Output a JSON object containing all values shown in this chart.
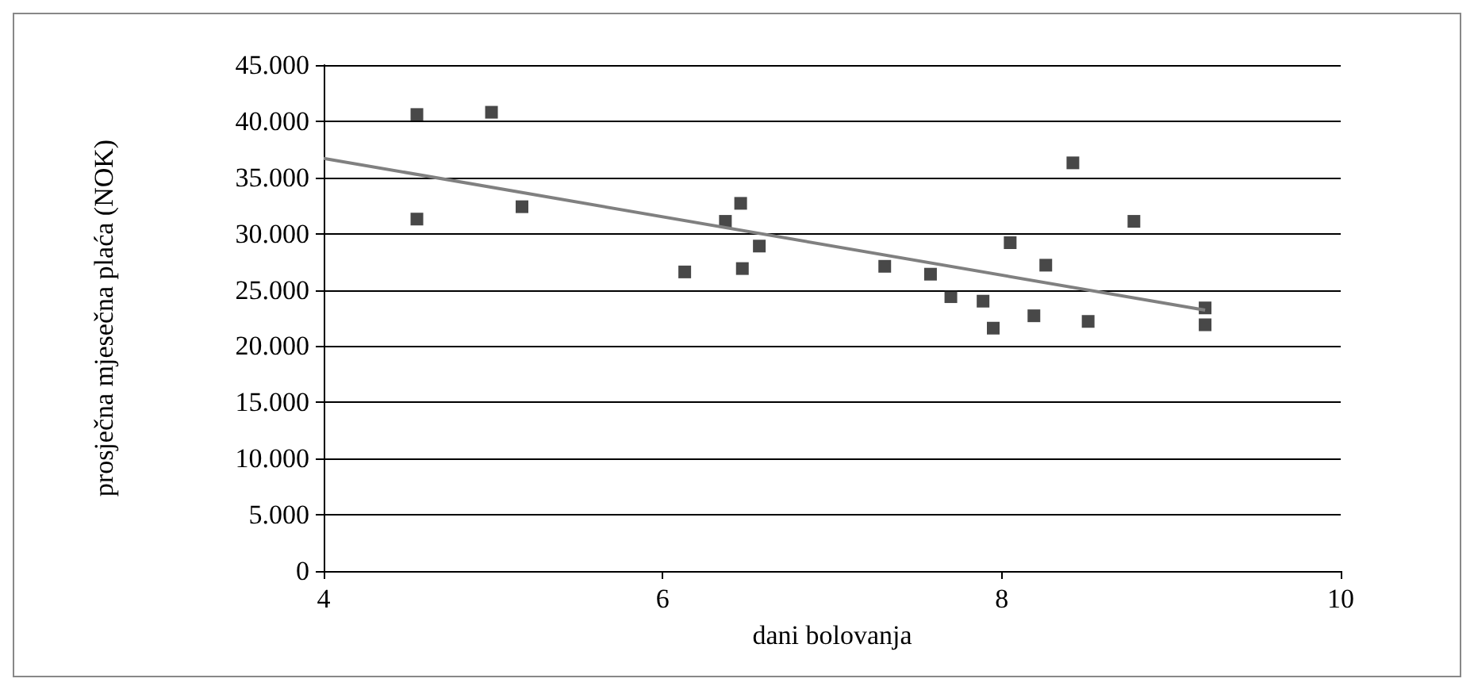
{
  "chart_data": {
    "type": "scatter",
    "xlabel": "dani bolovanja",
    "ylabel": "prosječna mjesečna plaća (NOK)",
    "xlim": [
      4,
      10
    ],
    "xticks": [
      4,
      6,
      8,
      10
    ],
    "ylim": [
      0,
      45000
    ],
    "yticks": [
      {
        "value": 0,
        "label": "0"
      },
      {
        "value": 5000,
        "label": "5.000"
      },
      {
        "value": 10000,
        "label": "10.000"
      },
      {
        "value": 15000,
        "label": "15.000"
      },
      {
        "value": 20000,
        "label": "20.000"
      },
      {
        "value": 25000,
        "label": "25.000"
      },
      {
        "value": 30000,
        "label": "30.000"
      },
      {
        "value": 35000,
        "label": "35.000"
      },
      {
        "value": 40000,
        "label": "40.000"
      },
      {
        "value": 45000,
        "label": "45.000"
      }
    ],
    "grid": "y",
    "marker": "square",
    "series": [
      {
        "color": "#1a1a1a",
        "x": [
          4.55,
          4.55,
          4.99,
          5.17,
          6.13,
          6.37,
          6.46,
          6.47,
          6.57,
          7.31,
          7.58,
          7.7,
          7.89,
          7.95,
          8.05,
          8.19,
          8.26,
          8.42,
          8.51,
          8.78,
          9.2,
          9.2
        ],
        "values": [
          40600,
          31300,
          40800,
          32400,
          26600,
          31100,
          32700,
          26900,
          28900,
          27100,
          26400,
          24400,
          24000,
          21600,
          29200,
          22700,
          27200,
          36300,
          22200,
          31100,
          23400,
          21900
        ]
      },
      {
        "type": "line",
        "color": "#808080",
        "marker": "none",
        "x": [
          4,
          9.2
        ],
        "values": [
          36700,
          23200
        ]
      }
    ]
  }
}
